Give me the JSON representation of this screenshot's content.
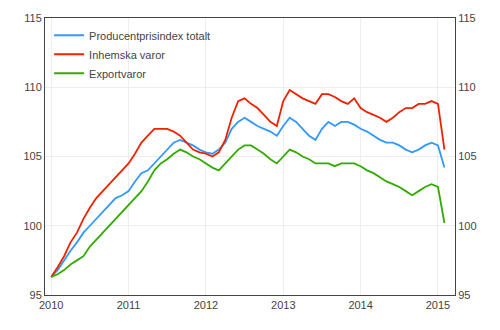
{
  "chart_data": {
    "type": "line",
    "x": [
      2010.0,
      2010.0833333333333,
      2010.1666666666667,
      2010.25,
      2010.3333333333333,
      2010.4166666666667,
      2010.5,
      2010.5833333333333,
      2010.6666666666667,
      2010.75,
      2010.8333333333333,
      2010.9166666666667,
      2011.0,
      2011.0833333333333,
      2011.1666666666667,
      2011.25,
      2011.3333333333333,
      2011.4166666666667,
      2011.5,
      2011.5833333333333,
      2011.6666666666667,
      2011.75,
      2011.8333333333333,
      2011.9166666666667,
      2012.0,
      2012.0833333333333,
      2012.1666666666667,
      2012.25,
      2012.3333333333333,
      2012.4166666666667,
      2012.5,
      2012.5833333333333,
      2012.6666666666667,
      2012.75,
      2012.8333333333333,
      2012.9166666666667,
      2013.0,
      2013.0833333333333,
      2013.1666666666667,
      2013.25,
      2013.3333333333333,
      2013.4166666666667,
      2013.5,
      2013.5833333333333,
      2013.6666666666667,
      2013.75,
      2013.8333333333333,
      2013.9166666666667,
      2014.0,
      2014.0833333333333,
      2014.1666666666667,
      2014.25,
      2014.3333333333333,
      2014.4166666666667,
      2014.5,
      2014.5833333333333,
      2014.6666666666667,
      2014.75,
      2014.8333333333333,
      2014.9166666666667,
      2015.0,
      2015.0833333333333
    ],
    "series": [
      {
        "name": "Producentprisindex totalt",
        "color": "#3399FF",
        "values": [
          96.3,
          96.8,
          97.5,
          98.2,
          98.8,
          99.5,
          100.0,
          100.5,
          101.0,
          101.5,
          102.0,
          102.2,
          102.5,
          103.2,
          103.8,
          104.0,
          104.5,
          105.0,
          105.5,
          106.0,
          106.2,
          106.0,
          105.8,
          105.5,
          105.3,
          105.2,
          105.5,
          106.0,
          107.0,
          107.5,
          107.8,
          107.5,
          107.2,
          107.0,
          106.8,
          106.5,
          107.2,
          107.8,
          107.5,
          107.0,
          106.5,
          106.2,
          107.0,
          107.5,
          107.2,
          107.5,
          107.5,
          107.3,
          107.0,
          106.8,
          106.5,
          106.2,
          106.0,
          106.0,
          105.8,
          105.5,
          105.3,
          105.5,
          105.8,
          106.0,
          105.8,
          104.2
        ]
      },
      {
        "name": "Inhemska varor",
        "color": "#EE2200",
        "values": [
          96.3,
          97.0,
          97.8,
          98.8,
          99.5,
          100.5,
          101.3,
          102.0,
          102.5,
          103.0,
          103.5,
          104.0,
          104.5,
          105.2,
          106.0,
          106.5,
          107.0,
          107.0,
          107.0,
          106.8,
          106.5,
          106.0,
          105.5,
          105.3,
          105.2,
          105.0,
          105.3,
          106.2,
          107.8,
          109.0,
          109.2,
          108.8,
          108.5,
          108.0,
          107.5,
          107.2,
          109.0,
          109.8,
          109.5,
          109.2,
          109.0,
          108.8,
          109.5,
          109.5,
          109.3,
          109.0,
          108.8,
          109.2,
          108.5,
          108.2,
          108.0,
          107.8,
          107.5,
          107.8,
          108.2,
          108.5,
          108.5,
          108.8,
          108.8,
          109.0,
          108.8,
          105.5
        ]
      },
      {
        "name": "Exportvaror",
        "color": "#33AA00",
        "values": [
          96.3,
          96.5,
          96.8,
          97.2,
          97.5,
          97.8,
          98.5,
          99.0,
          99.5,
          100.0,
          100.5,
          101.0,
          101.5,
          102.0,
          102.5,
          103.2,
          104.0,
          104.5,
          104.8,
          105.2,
          105.5,
          105.3,
          105.0,
          104.8,
          104.5,
          104.2,
          104.0,
          104.5,
          105.0,
          105.5,
          105.8,
          105.8,
          105.5,
          105.2,
          104.8,
          104.5,
          105.0,
          105.5,
          105.3,
          105.0,
          104.8,
          104.5,
          104.5,
          104.5,
          104.3,
          104.5,
          104.5,
          104.5,
          104.3,
          104.0,
          103.8,
          103.5,
          103.2,
          103.0,
          102.8,
          102.5,
          102.2,
          102.5,
          102.8,
          103.0,
          102.8,
          100.2
        ]
      }
    ],
    "xlim": [
      2009.92,
      2015.22
    ],
    "xticks": [
      2010,
      2011,
      2012,
      2013,
      2014,
      2015
    ],
    "ylim": [
      95,
      115
    ],
    "yticks": [
      95,
      100,
      105,
      110,
      115
    ],
    "y2lim": [
      95,
      115
    ],
    "y2ticks": [
      95,
      100,
      105,
      110,
      115
    ],
    "grid": true,
    "legend": "upper left"
  }
}
